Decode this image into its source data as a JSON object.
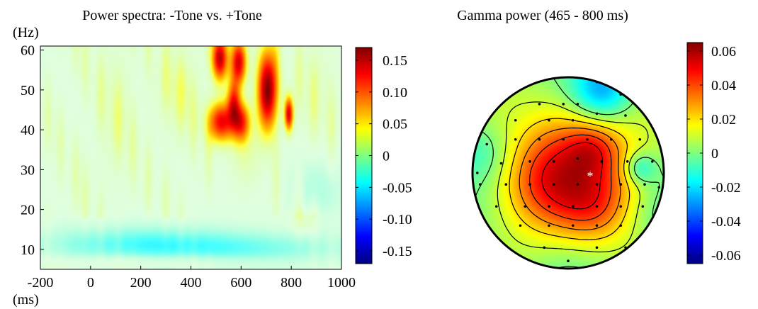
{
  "chart_data": [
    {
      "type": "heatmap",
      "title": "Power spectra: -Tone vs. +Tone",
      "ylabel": "(Hz)",
      "xlabel": "(ms)",
      "xlim": [
        -200,
        1000
      ],
      "ylim": [
        5,
        61
      ],
      "x_ticks": [
        -200,
        0,
        200,
        400,
        600,
        800,
        1000
      ],
      "x_tick_labels": [
        "-200",
        "0",
        "200",
        "400",
        "600",
        "800",
        "1000"
      ],
      "y_ticks": [
        10,
        20,
        30,
        40,
        50,
        60
      ],
      "y_tick_labels": [
        "10",
        "20",
        "30",
        "40",
        "50",
        "60"
      ],
      "colorbar": {
        "range": [
          -0.17,
          0.17
        ],
        "ticks": [
          0.15,
          0.1,
          0.05,
          0,
          -0.05,
          -0.1,
          -0.15
        ],
        "tick_labels": [
          "0.15",
          "0.10",
          "0.05",
          "0",
          "-0.05",
          "-0.10",
          "-0.15"
        ]
      },
      "blobs": [
        {
          "t": 520,
          "f": 42,
          "st": 35,
          "sf": 3.5,
          "v": 0.13
        },
        {
          "t": 570,
          "f": 47,
          "st": 18,
          "sf": 4,
          "v": 0.1
        },
        {
          "t": 600,
          "f": 42,
          "st": 25,
          "sf": 3.5,
          "v": 0.11
        },
        {
          "t": 705,
          "f": 50,
          "st": 28,
          "sf": 7,
          "v": 0.17
        },
        {
          "t": 515,
          "f": 58,
          "st": 22,
          "sf": 4,
          "v": 0.15
        },
        {
          "t": 590,
          "f": 57,
          "st": 22,
          "sf": 4,
          "v": 0.14
        },
        {
          "t": 790,
          "f": 44,
          "st": 12,
          "sf": 3,
          "v": 0.14
        },
        {
          "t": 620,
          "f": 34,
          "st": 45,
          "sf": 6,
          "v": 0.02
        },
        {
          "t": 350,
          "f": 50,
          "st": 60,
          "sf": 8,
          "v": 0.02
        },
        {
          "t": 100,
          "f": 45,
          "st": 50,
          "sf": 12,
          "v": 0.015
        },
        {
          "t": 900,
          "f": 50,
          "st": 60,
          "sf": 10,
          "v": 0.012
        },
        {
          "t": 850,
          "f": 17,
          "st": 40,
          "sf": 2,
          "v": 0.02
        },
        {
          "t": 450,
          "f": 10,
          "st": 450,
          "sf": 3,
          "v": -0.035
        },
        {
          "t": 200,
          "f": 13,
          "st": 300,
          "sf": 3,
          "v": -0.02
        },
        {
          "t": 900,
          "f": 25,
          "st": 80,
          "sf": 6,
          "v": -0.02
        },
        {
          "t": 250,
          "f": 7,
          "st": 300,
          "sf": 1.2,
          "v": 0.015
        }
      ],
      "vertical_bands": [
        -170,
        -120,
        -60,
        -20,
        40,
        110,
        170,
        230,
        300,
        360,
        410,
        470,
        740,
        830,
        890,
        960
      ]
    },
    {
      "type": "heatmap",
      "title": "Gamma power (465 - 800 ms)",
      "colorbar": {
        "range": [
          -0.065,
          0.065
        ],
        "ticks": [
          0.06,
          0.04,
          0.02,
          0,
          -0.02,
          -0.04,
          -0.06
        ],
        "tick_labels": [
          "0.06",
          "0.04",
          "0.02",
          "0",
          "-0.02",
          "-0.04",
          "-0.06"
        ]
      },
      "sources": [
        {
          "x": 0.1,
          "y": 0.05,
          "s": 0.55,
          "v": 0.037
        },
        {
          "x": -0.3,
          "y": 0.15,
          "s": 0.3,
          "v": 0.014
        },
        {
          "x": 0.25,
          "y": 0.35,
          "s": 0.25,
          "v": 0.012
        },
        {
          "x": 0.25,
          "y": -0.25,
          "s": 0.18,
          "v": 0.016
        },
        {
          "x": -0.1,
          "y": -0.2,
          "s": 0.3,
          "v": 0.008
        },
        {
          "x": 0.35,
          "y": -0.85,
          "s": 0.22,
          "v": -0.03
        },
        {
          "x": 0.75,
          "y": -0.05,
          "s": 0.12,
          "v": -0.022
        },
        {
          "x": 0.9,
          "y": 0.4,
          "s": 0.25,
          "v": -0.008
        },
        {
          "x": -0.9,
          "y": -0.2,
          "s": 0.2,
          "v": -0.01
        },
        {
          "x": 0.0,
          "y": 0.9,
          "s": 0.3,
          "v": -0.006
        }
      ],
      "electrodes": [
        [
          0.3,
          -0.95
        ],
        [
          0.55,
          -0.82
        ],
        [
          -0.05,
          -0.72
        ],
        [
          -0.3,
          -0.72
        ],
        [
          0.1,
          -0.72
        ],
        [
          0.3,
          -0.62
        ],
        [
          0.6,
          -0.6
        ],
        [
          -0.55,
          -0.55
        ],
        [
          -0.2,
          -0.55
        ],
        [
          0.05,
          -0.55
        ],
        [
          -0.85,
          -0.3
        ],
        [
          -0.55,
          -0.35
        ],
        [
          -0.3,
          -0.35
        ],
        [
          -0.05,
          -0.35
        ],
        [
          0.2,
          -0.35
        ],
        [
          0.45,
          -0.35
        ],
        [
          0.75,
          -0.35
        ],
        [
          -0.7,
          -0.1
        ],
        [
          -0.4,
          -0.12
        ],
        [
          -0.15,
          -0.12
        ],
        [
          0.1,
          -0.15
        ],
        [
          0.35,
          -0.12
        ],
        [
          0.62,
          -0.12
        ],
        [
          0.88,
          -0.12
        ],
        [
          -0.92,
          0.12
        ],
        [
          -0.65,
          0.12
        ],
        [
          -0.4,
          0.12
        ],
        [
          -0.15,
          0.12
        ],
        [
          0.1,
          0.12
        ],
        [
          0.3,
          0.12
        ],
        [
          0.55,
          0.12
        ],
        [
          0.8,
          0.12
        ],
        [
          -0.75,
          0.35
        ],
        [
          -0.45,
          0.35
        ],
        [
          -0.2,
          0.35
        ],
        [
          0.05,
          0.35
        ],
        [
          0.3,
          0.35
        ],
        [
          0.55,
          0.35
        ],
        [
          0.78,
          0.35
        ],
        [
          -0.5,
          0.55
        ],
        [
          -0.2,
          0.55
        ],
        [
          0.05,
          0.55
        ],
        [
          0.3,
          0.55
        ],
        [
          0.55,
          0.55
        ],
        [
          -0.25,
          0.78
        ],
        [
          0.0,
          0.92
        ],
        [
          0.3,
          0.78
        ],
        [
          0.6,
          0.78
        ],
        [
          -0.95,
          0.0
        ],
        [
          0.95,
          0.15
        ]
      ],
      "marked_electrode": [
        0.23,
        0.01
      ],
      "contour_levels": [
        0.0,
        0.01,
        0.02,
        0.03,
        0.04,
        0.05
      ]
    }
  ]
}
